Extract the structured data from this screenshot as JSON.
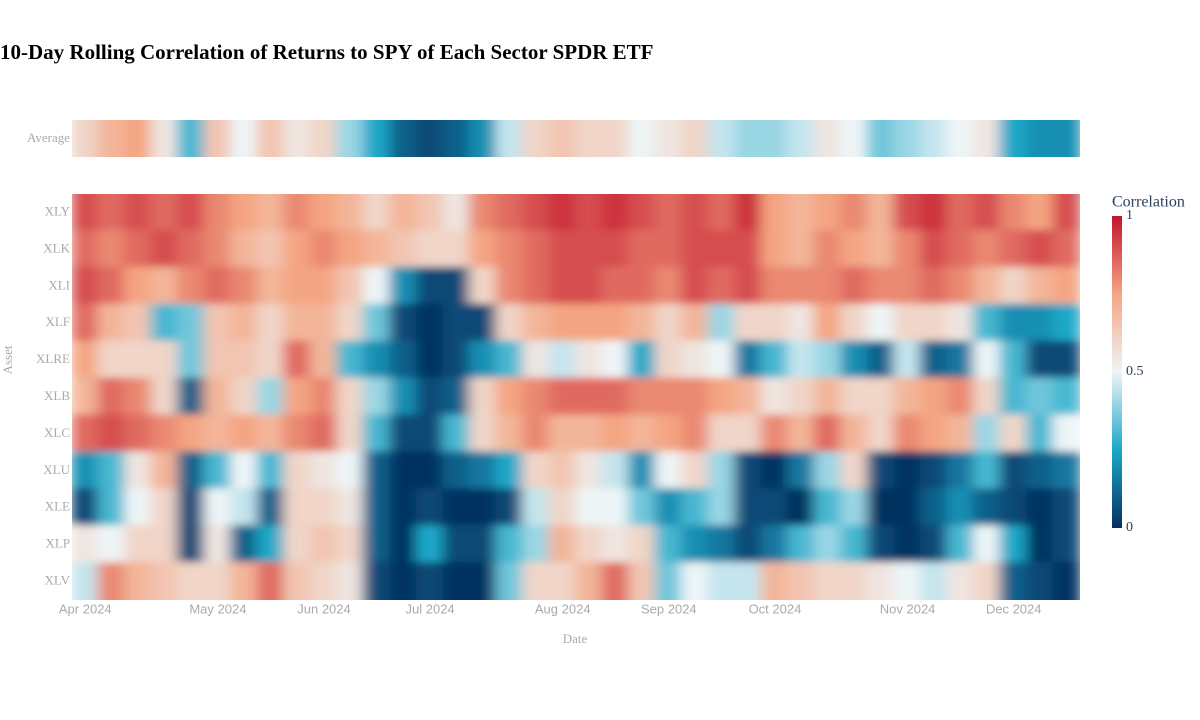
{
  "chart_data": {
    "type": "heatmap",
    "title": "10-Day Rolling Correlation of Returns to SPY of Each Sector SPDR ETF",
    "x_label": "Date",
    "y_label": "Asset",
    "x": [
      "Apr 2024",
      null,
      null,
      null,
      null,
      "May 2024",
      null,
      null,
      null,
      "Jun 2024",
      null,
      null,
      null,
      "Jul 2024",
      null,
      null,
      null,
      null,
      "Aug 2024",
      null,
      null,
      null,
      "Sep 2024",
      null,
      null,
      null,
      "Oct 2024",
      null,
      null,
      null,
      null,
      "Nov 2024",
      null,
      null,
      null,
      "Dec 2024",
      null,
      null
    ],
    "average": {
      "name": "Average",
      "values": [
        0.6,
        0.7,
        0.75,
        0.55,
        0.3,
        0.65,
        0.5,
        0.65,
        0.55,
        0.6,
        0.4,
        0.25,
        0.1,
        0.05,
        0.1,
        0.2,
        0.45,
        0.6,
        0.65,
        0.6,
        0.6,
        0.5,
        0.55,
        0.6,
        0.45,
        0.4,
        0.4,
        0.45,
        0.55,
        0.5,
        0.35,
        0.4,
        0.45,
        0.5,
        0.55,
        0.25,
        0.2,
        0.2
      ]
    },
    "y": [
      "XLY",
      "XLK",
      "XLI",
      "XLF",
      "XLRE",
      "XLB",
      "XLC",
      "XLU",
      "XLE",
      "XLP",
      "XLV"
    ],
    "z": [
      [
        0.9,
        0.85,
        0.9,
        0.85,
        0.9,
        0.8,
        0.75,
        0.7,
        0.8,
        0.75,
        0.7,
        0.6,
        0.7,
        0.65,
        0.55,
        0.8,
        0.85,
        0.9,
        0.95,
        0.9,
        0.95,
        0.9,
        0.85,
        0.9,
        0.85,
        0.95,
        0.75,
        0.7,
        0.75,
        0.8,
        0.7,
        0.9,
        0.95,
        0.85,
        0.9,
        0.8,
        0.75,
        0.9
      ],
      [
        0.85,
        0.8,
        0.85,
        0.9,
        0.85,
        0.8,
        0.7,
        0.65,
        0.75,
        0.8,
        0.75,
        0.7,
        0.65,
        0.6,
        0.6,
        0.75,
        0.8,
        0.85,
        0.9,
        0.9,
        0.9,
        0.85,
        0.85,
        0.9,
        0.9,
        0.9,
        0.75,
        0.7,
        0.8,
        0.75,
        0.7,
        0.8,
        0.9,
        0.85,
        0.8,
        0.85,
        0.9,
        0.85
      ],
      [
        0.9,
        0.85,
        0.75,
        0.7,
        0.8,
        0.85,
        0.8,
        0.7,
        0.75,
        0.75,
        0.65,
        0.5,
        0.2,
        0.05,
        0.05,
        0.6,
        0.8,
        0.85,
        0.9,
        0.9,
        0.85,
        0.85,
        0.8,
        0.9,
        0.85,
        0.9,
        0.8,
        0.8,
        0.8,
        0.85,
        0.8,
        0.8,
        0.85,
        0.8,
        0.7,
        0.6,
        0.7,
        0.75
      ],
      [
        0.85,
        0.7,
        0.65,
        0.3,
        0.35,
        0.65,
        0.7,
        0.6,
        0.7,
        0.7,
        0.6,
        0.35,
        0.05,
        0,
        0.05,
        0.05,
        0.6,
        0.7,
        0.75,
        0.75,
        0.75,
        0.7,
        0.6,
        0.7,
        0.4,
        0.6,
        0.6,
        0.55,
        0.75,
        0.6,
        0.5,
        0.6,
        0.6,
        0.55,
        0.3,
        0.2,
        0.2,
        0.25
      ],
      [
        0.75,
        0.6,
        0.6,
        0.6,
        0.35,
        0.65,
        0.65,
        0.6,
        0.85,
        0.7,
        0.3,
        0.2,
        0.1,
        0,
        0.05,
        0.2,
        0.3,
        0.55,
        0.45,
        0.55,
        0.5,
        0.25,
        0.6,
        0.55,
        0.5,
        0.15,
        0.3,
        0.45,
        0.4,
        0.2,
        0.1,
        0.45,
        0.1,
        0.15,
        0.5,
        0.3,
        0.05,
        0.05
      ],
      [
        0.7,
        0.85,
        0.8,
        0.6,
        0.1,
        0.7,
        0.6,
        0.4,
        0.75,
        0.8,
        0.6,
        0.4,
        0.2,
        0.05,
        0.1,
        0.6,
        0.75,
        0.8,
        0.85,
        0.85,
        0.85,
        0.8,
        0.8,
        0.8,
        0.75,
        0.7,
        0.55,
        0.6,
        0.7,
        0.6,
        0.6,
        0.7,
        0.75,
        0.8,
        0.6,
        0.3,
        0.35,
        0.3
      ],
      [
        0.85,
        0.9,
        0.85,
        0.8,
        0.75,
        0.7,
        0.75,
        0.7,
        0.8,
        0.85,
        0.6,
        0.3,
        0.05,
        0.05,
        0.3,
        0.6,
        0.7,
        0.8,
        0.7,
        0.7,
        0.75,
        0.7,
        0.75,
        0.8,
        0.6,
        0.6,
        0.8,
        0.7,
        0.85,
        0.7,
        0.6,
        0.8,
        0.75,
        0.7,
        0.4,
        0.6,
        0.3,
        0.5
      ],
      [
        0.2,
        0.3,
        0.55,
        0.7,
        0.1,
        0.3,
        0.5,
        0.3,
        0.6,
        0.55,
        0.5,
        0.1,
        0,
        0,
        0.1,
        0.15,
        0.25,
        0.6,
        0.65,
        0.55,
        0.45,
        0.2,
        0.5,
        0.6,
        0.4,
        0.05,
        0,
        0.15,
        0.4,
        0.6,
        0.05,
        0,
        0.05,
        0.15,
        0.3,
        0.05,
        0.1,
        0.15
      ],
      [
        0.05,
        0.3,
        0.5,
        0.6,
        0.05,
        0.5,
        0.45,
        0.1,
        0.6,
        0.6,
        0.55,
        0.1,
        0,
        0.05,
        0,
        0,
        0.05,
        0.45,
        0.6,
        0.5,
        0.5,
        0.35,
        0.2,
        0.3,
        0.4,
        0.05,
        0.05,
        0,
        0.3,
        0.4,
        0,
        0,
        0.1,
        0.2,
        0.1,
        0.05,
        0,
        0.05
      ],
      [
        0.55,
        0.5,
        0.6,
        0.6,
        0.05,
        0.55,
        0.1,
        0.25,
        0.6,
        0.65,
        0.6,
        0.1,
        0,
        0.25,
        0.05,
        0.05,
        0.3,
        0.4,
        0.7,
        0.6,
        0.55,
        0.6,
        0.3,
        0.2,
        0.15,
        0.05,
        0.15,
        0.3,
        0.4,
        0.3,
        0.05,
        0,
        0.05,
        0.3,
        0.5,
        0.25,
        0,
        0.05
      ],
      [
        0.45,
        0.8,
        0.7,
        0.65,
        0.6,
        0.6,
        0.7,
        0.85,
        0.65,
        0.6,
        0.55,
        0.05,
        0,
        0.05,
        0,
        0,
        0.35,
        0.6,
        0.6,
        0.7,
        0.85,
        0.65,
        0.35,
        0.5,
        0.45,
        0.45,
        0.7,
        0.65,
        0.6,
        0.6,
        0.55,
        0.5,
        0.45,
        0.55,
        0.6,
        0.1,
        0.05,
        0
      ]
    ],
    "colorbar_title": "Correlation",
    "zlim": [
      0,
      1
    ],
    "zticks": [
      0,
      0.5,
      1
    ],
    "colorscale": [
      [
        0,
        "#053061"
      ],
      [
        0.25,
        "#1ca7c8"
      ],
      [
        0.5,
        "#eef5f7"
      ],
      [
        0.75,
        "#f4a582"
      ],
      [
        1,
        "#c2142d"
      ]
    ]
  }
}
